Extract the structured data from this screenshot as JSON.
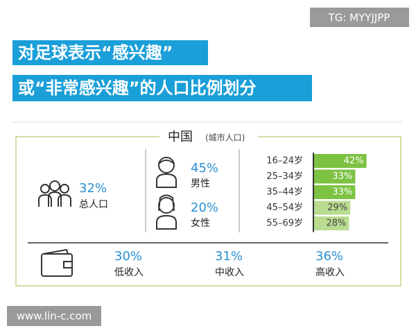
{
  "watermark_top": "TG: MYYJJPP",
  "title": {
    "line1": "对足球表示“感兴趣”",
    "line2": "或“非常感兴趣”的人口比例划分"
  },
  "panel": {
    "title": "中国",
    "subtitle": "(城市人口)",
    "total": {
      "value": "32%",
      "label": "总人口"
    },
    "male": {
      "value": "45%",
      "label": "男性"
    },
    "female": {
      "value": "20%",
      "label": "女性"
    },
    "age_groups": {
      "categories": [
        "16–24岁",
        "25–34岁",
        "35–44岁",
        "45–54岁",
        "55–69岁"
      ],
      "values": [
        42,
        33,
        33,
        29,
        28
      ],
      "value_labels": [
        "42%",
        "33%",
        "33%",
        "29%",
        "28%"
      ],
      "colors": [
        "#7dc242",
        "#7dc242",
        "#7dc242",
        "#b9dc90",
        "#b9dc90"
      ]
    },
    "income": [
      {
        "value": "30%",
        "label": "低收入"
      },
      {
        "value": "31%",
        "label": "中收入"
      },
      {
        "value": "36%",
        "label": "高收入"
      }
    ]
  },
  "watermark_bottom": "www.lin-c.com"
}
